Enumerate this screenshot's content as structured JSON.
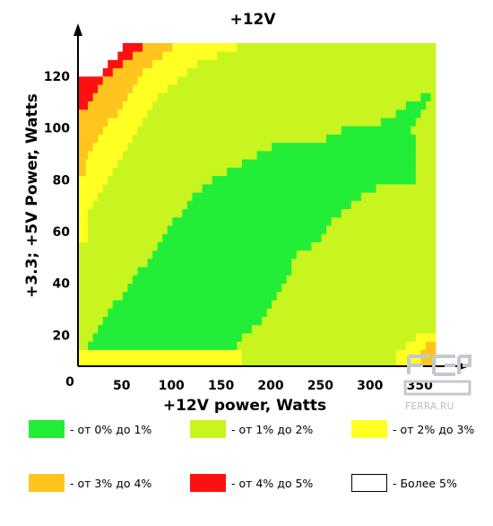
{
  "chart_data": {
    "type": "heatmap",
    "title": "+12V",
    "xlabel": "+12V power, Watts",
    "ylabel": "+3.3; +5V Power, Watts",
    "xlim": [
      0,
      360
    ],
    "ylim": [
      0,
      132
    ],
    "x_ticks": [
      50,
      100,
      150,
      200,
      250,
      300,
      350
    ],
    "y_ticks": [
      20,
      40,
      60,
      80,
      100,
      120
    ],
    "origin_label": "0",
    "grid": false,
    "legend_position": "bottom",
    "x_step": 5,
    "y_step": 3.2,
    "y_start": 8,
    "rows": [
      {
        "y": 8,
        "x_start": 2,
        "x_end": 360,
        "bands": [
          [
            0,
            2,
            2
          ],
          [
            165,
            3,
            1
          ],
          [
            320,
            3,
            2
          ],
          [
            345,
            3,
            3
          ]
        ]
      },
      {
        "y": 11.2,
        "bands": [
          [
            0,
            2,
            2
          ],
          [
            165,
            3,
            1
          ],
          [
            320,
            3,
            2
          ],
          [
            345,
            3,
            3
          ]
        ]
      },
      {
        "y": 14.4,
        "bands": [
          [
            0,
            2,
            1
          ],
          [
            10,
            1,
            0
          ],
          [
            160,
            3,
            1
          ],
          [
            330,
            3,
            2
          ],
          [
            350,
            3,
            3
          ]
        ]
      },
      {
        "y": 17.6,
        "bands": [
          [
            0,
            2,
            1
          ],
          [
            15,
            1,
            0
          ],
          [
            165,
            3,
            1
          ],
          [
            340,
            3,
            2
          ]
        ]
      },
      {
        "y": 20.8,
        "bands": [
          [
            0,
            2,
            1
          ],
          [
            20,
            1,
            0
          ],
          [
            175,
            3,
            1
          ]
        ]
      },
      {
        "y": 24,
        "bands": [
          [
            0,
            2,
            1
          ],
          [
            25,
            1,
            0
          ],
          [
            185,
            3,
            1
          ]
        ]
      },
      {
        "y": 27.2,
        "bands": [
          [
            0,
            2,
            1
          ],
          [
            30,
            1,
            0
          ],
          [
            190,
            3,
            1
          ]
        ]
      },
      {
        "y": 30.4,
        "bands": [
          [
            0,
            2,
            1
          ],
          [
            35,
            1,
            0
          ],
          [
            195,
            3,
            1
          ]
        ]
      },
      {
        "y": 33.6,
        "bands": [
          [
            0,
            2,
            1
          ],
          [
            45,
            1,
            0
          ],
          [
            200,
            3,
            1
          ]
        ]
      },
      {
        "y": 36.8,
        "bands": [
          [
            0,
            2,
            1
          ],
          [
            50,
            1,
            0
          ],
          [
            205,
            3,
            1
          ]
        ]
      },
      {
        "y": 40,
        "bands": [
          [
            0,
            2,
            1
          ],
          [
            55,
            1,
            0
          ],
          [
            210,
            3,
            1
          ]
        ]
      },
      {
        "y": 43.2,
        "bands": [
          [
            0,
            2,
            1
          ],
          [
            60,
            1,
            0
          ],
          [
            215,
            3,
            1
          ]
        ]
      },
      {
        "y": 46.4,
        "bands": [
          [
            0,
            2,
            1
          ],
          [
            70,
            1,
            0
          ],
          [
            215,
            3,
            1
          ]
        ]
      },
      {
        "y": 49.6,
        "bands": [
          [
            0,
            2,
            1
          ],
          [
            75,
            1,
            0
          ],
          [
            220,
            3,
            1
          ]
        ]
      },
      {
        "y": 52.8,
        "bands": [
          [
            0,
            2,
            1
          ],
          [
            80,
            1,
            0
          ],
          [
            235,
            3,
            1
          ]
        ]
      },
      {
        "y": 56,
        "bands": [
          [
            0,
            2,
            2
          ],
          [
            10,
            1,
            1
          ],
          [
            85,
            1,
            0
          ],
          [
            245,
            3,
            1
          ]
        ]
      },
      {
        "y": 59.2,
        "bands": [
          [
            0,
            2,
            2
          ],
          [
            10,
            1,
            1
          ],
          [
            90,
            1,
            0
          ],
          [
            250,
            3,
            1
          ]
        ]
      },
      {
        "y": 62.4,
        "bands": [
          [
            0,
            2,
            2
          ],
          [
            10,
            1,
            1
          ],
          [
            95,
            1,
            0
          ],
          [
            255,
            3,
            1
          ]
        ]
      },
      {
        "y": 65.6,
        "bands": [
          [
            0,
            2,
            2
          ],
          [
            10,
            1,
            1
          ],
          [
            105,
            1,
            0
          ],
          [
            265,
            3,
            1
          ]
        ]
      },
      {
        "y": 68.8,
        "bands": [
          [
            0,
            2,
            2
          ],
          [
            15,
            1,
            1
          ],
          [
            110,
            1,
            0
          ],
          [
            275,
            3,
            1
          ]
        ]
      },
      {
        "y": 72,
        "bands": [
          [
            0,
            2,
            2
          ],
          [
            20,
            1,
            1
          ],
          [
            115,
            1,
            0
          ],
          [
            285,
            3,
            1
          ]
        ]
      },
      {
        "y": 75.2,
        "bands": [
          [
            0,
            2,
            2
          ],
          [
            25,
            1,
            1
          ],
          [
            125,
            1,
            0
          ],
          [
            300,
            3,
            1
          ]
        ]
      },
      {
        "y": 78.4,
        "bands": [
          [
            0,
            2,
            2
          ],
          [
            30,
            1,
            1
          ],
          [
            135,
            1,
            0
          ],
          [
            340,
            3,
            1
          ]
        ]
      },
      {
        "y": 81.6,
        "bands": [
          [
            0,
            2,
            3
          ],
          [
            8,
            2,
            2
          ],
          [
            35,
            1,
            1
          ],
          [
            150,
            1,
            0
          ],
          [
            340,
            3,
            1
          ]
        ]
      },
      {
        "y": 84.8,
        "bands": [
          [
            0,
            2,
            3
          ],
          [
            8,
            2,
            2
          ],
          [
            40,
            1,
            1
          ],
          [
            165,
            1,
            0
          ],
          [
            340,
            3,
            1
          ]
        ]
      },
      {
        "y": 88,
        "bands": [
          [
            0,
            2,
            3
          ],
          [
            10,
            2,
            2
          ],
          [
            45,
            1,
            1
          ],
          [
            180,
            1,
            0
          ],
          [
            340,
            3,
            1
          ]
        ]
      },
      {
        "y": 91.2,
        "bands": [
          [
            0,
            2,
            3
          ],
          [
            15,
            2,
            2
          ],
          [
            50,
            1,
            1
          ],
          [
            195,
            1,
            0
          ],
          [
            340,
            3,
            1
          ]
        ]
      },
      {
        "y": 94.4,
        "bands": [
          [
            0,
            2,
            3
          ],
          [
            20,
            2,
            2
          ],
          [
            55,
            1,
            1
          ],
          [
            250,
            1,
            0
          ],
          [
            340,
            3,
            1
          ]
        ]
      },
      {
        "y": 97.6,
        "bands": [
          [
            0,
            2,
            3
          ],
          [
            25,
            2,
            2
          ],
          [
            60,
            1,
            1
          ],
          [
            265,
            1,
            0
          ],
          [
            335,
            3,
            1
          ]
        ]
      },
      {
        "y": 100.8,
        "bands": [
          [
            0,
            2,
            3
          ],
          [
            30,
            2,
            2
          ],
          [
            65,
            1,
            1
          ],
          [
            305,
            1,
            0
          ],
          [
            340,
            3,
            1
          ]
        ]
      },
      {
        "y": 104,
        "bands": [
          [
            0,
            2,
            3
          ],
          [
            40,
            2,
            2
          ],
          [
            70,
            1,
            1
          ],
          [
            320,
            1,
            0
          ],
          [
            345,
            3,
            1
          ]
        ]
      },
      {
        "y": 107.2,
        "bands": [
          [
            0,
            2,
            4
          ],
          [
            10,
            2,
            3
          ],
          [
            45,
            2,
            2
          ],
          [
            75,
            1,
            1
          ],
          [
            330,
            1,
            0
          ],
          [
            350,
            3,
            1
          ]
        ]
      },
      {
        "y": 110.4,
        "bands": [
          [
            0,
            2,
            4
          ],
          [
            15,
            2,
            3
          ],
          [
            50,
            2,
            2
          ],
          [
            80,
            1,
            1
          ],
          [
            345,
            1,
            0
          ],
          [
            355,
            3,
            1
          ]
        ]
      },
      {
        "y": 113.6,
        "bands": [
          [
            0,
            2,
            4
          ],
          [
            20,
            2,
            3
          ],
          [
            55,
            2,
            2
          ],
          [
            90,
            1,
            1
          ],
          [
            360,
            1,
            0
          ]
        ]
      },
      {
        "y": 116.8,
        "bands": [
          [
            0,
            2,
            4
          ],
          [
            25,
            2,
            3
          ],
          [
            60,
            2,
            2
          ],
          [
            100,
            1,
            1
          ],
          [
            360,
            1,
            0
          ]
        ]
      },
      {
        "y": 120,
        "bands": [
          [
            0,
            2,
            5
          ],
          [
            25,
            2,
            4
          ],
          [
            35,
            2,
            3
          ],
          [
            65,
            2,
            2
          ],
          [
            110,
            1,
            1
          ],
          [
            360,
            1,
            0
          ]
        ]
      },
      {
        "y": 123.2,
        "bands": [
          [
            0,
            2,
            5
          ],
          [
            30,
            2,
            4
          ],
          [
            45,
            2,
            3
          ],
          [
            75,
            2,
            2
          ],
          [
            120,
            1,
            1
          ],
          [
            360,
            1,
            0
          ]
        ]
      },
      {
        "y": 126.4,
        "bands": [
          [
            0,
            2,
            5
          ],
          [
            40,
            2,
            4
          ],
          [
            55,
            2,
            3
          ],
          [
            85,
            2,
            2
          ],
          [
            140,
            1,
            1
          ],
          [
            360,
            1,
            0
          ]
        ]
      },
      {
        "y": 129.6,
        "bands": [
          [
            0,
            2,
            5
          ],
          [
            45,
            2,
            4
          ],
          [
            65,
            2,
            3
          ],
          [
            95,
            2,
            2
          ],
          [
            160,
            1,
            1
          ],
          [
            360,
            1,
            0
          ]
        ]
      }
    ],
    "categories": [
      "- от 0% до 1%",
      "- от 1% до 2%",
      "- от 2% до 3%",
      "- от 3% до 4%",
      "- от 4% до 5%",
      "- Более 5%"
    ],
    "colors": [
      "#22ee38",
      "#c8f520",
      "#ffff22",
      "#ffc41e",
      "#ff1010",
      "#ffffff"
    ]
  },
  "watermark": "FERRA.RU"
}
